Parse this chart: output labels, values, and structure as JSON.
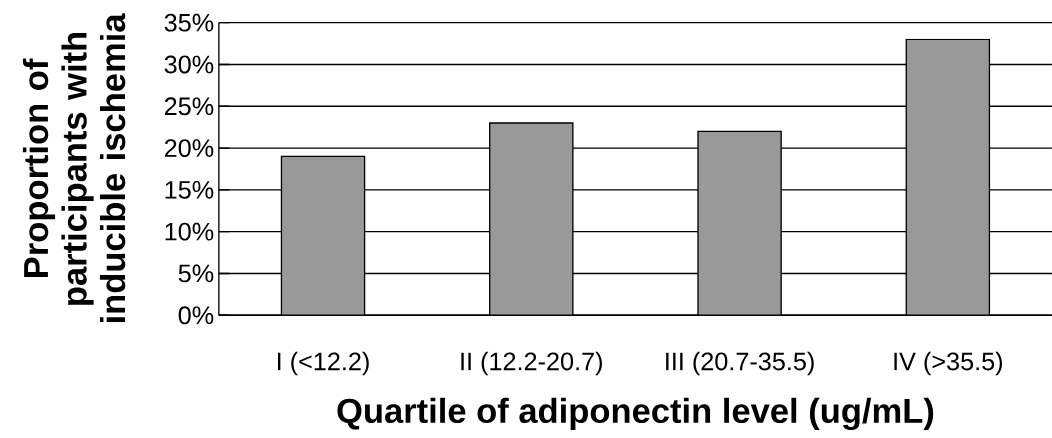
{
  "chart_data": {
    "type": "bar",
    "xlabel": "Quartile of adiponectin level (ug/mL)",
    "ylabel": "Proportion of participants with inducible ischemia",
    "categories": [
      "I (<12.2)",
      "II (12.2-20.7)",
      "III (20.7-35.5)",
      "IV (>35.5)"
    ],
    "values": [
      19,
      23,
      22,
      33
    ],
    "color": "#999999",
    "ylim": [
      0,
      35
    ],
    "yticks": [
      {
        "value": 0,
        "label": "0%"
      },
      {
        "value": 5,
        "label": "5%"
      },
      {
        "value": 10,
        "label": "10%"
      },
      {
        "value": 15,
        "label": "15%"
      },
      {
        "value": 20,
        "label": "20%"
      },
      {
        "value": 25,
        "label": "25%"
      },
      {
        "value": 30,
        "label": "30%"
      },
      {
        "value": 35,
        "label": "35%"
      }
    ],
    "grid": "y"
  }
}
